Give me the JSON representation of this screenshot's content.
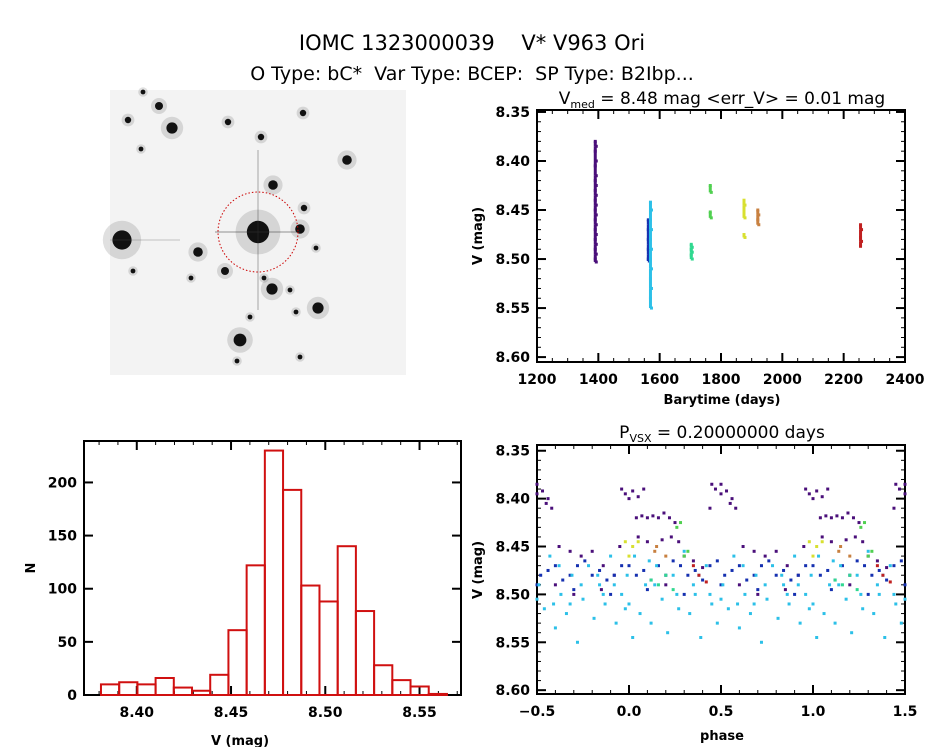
{
  "header": {
    "title": "IOMC 1323000039    V* V963 Ori",
    "subtitle": "O Type: bC*  Var Type: BCEP:  SP Type: B2Ibp..."
  },
  "sky_image": {
    "kind": "grayscale finder chart",
    "aperture_color": "#cc0000"
  },
  "chart_data": [
    {
      "type": "scatter",
      "title_main": "V",
      "title_sub": "med",
      "title_rest": " = 8.48 mag <err_V> = 0.01 mag",
      "xlabel": "Barytime (days)",
      "ylabel": "V (mag)",
      "xlim": [
        1200,
        2400
      ],
      "ylim": [
        8.605,
        8.348
      ],
      "y_inverted": true,
      "xticks": [
        "1200",
        "1400",
        "1600",
        "1800",
        "2000",
        "2200",
        "2400"
      ],
      "yticks": [
        "8.35",
        "8.40",
        "8.45",
        "8.50",
        "8.55",
        "8.60"
      ],
      "series": [
        {
          "color": "#4a0f7a",
          "t": 1390,
          "mags": [
            8.38,
            8.385,
            8.39,
            8.4,
            8.405,
            8.415,
            8.42,
            8.425,
            8.43,
            8.435,
            8.44,
            8.445,
            8.45,
            8.455,
            8.46,
            8.465,
            8.47,
            8.475,
            8.48,
            8.485,
            8.49,
            8.495,
            8.5,
            8.503
          ]
        },
        {
          "color": "#1530b0",
          "t": 1563,
          "mags": [
            8.46,
            8.465,
            8.47,
            8.475,
            8.48,
            8.485,
            8.49,
            8.495,
            8.5,
            8.502
          ]
        },
        {
          "color": "#2cc0e8",
          "t": 1570,
          "mags": [
            8.442,
            8.45,
            8.46,
            8.47,
            8.48,
            8.49,
            8.5,
            8.51,
            8.52,
            8.53,
            8.54,
            8.55
          ]
        },
        {
          "color": "#30d890",
          "t": 1703,
          "mags": [
            8.485,
            8.488,
            8.49,
            8.493,
            8.496,
            8.5
          ]
        },
        {
          "color": "#50d050",
          "t": 1765,
          "mags": [
            8.425,
            8.432,
            8.452,
            8.458
          ]
        },
        {
          "color": "#d8e030",
          "t": 1875,
          "mags": [
            8.44,
            8.445,
            8.45,
            8.458,
            8.475,
            8.478
          ]
        },
        {
          "color": "#c88040",
          "t": 1920,
          "mags": [
            8.45,
            8.455,
            8.46,
            8.465
          ]
        },
        {
          "color": "#c02020",
          "t": 2255,
          "mags": [
            8.465,
            8.47,
            8.478,
            8.482,
            8.487
          ]
        }
      ]
    },
    {
      "type": "bar",
      "xlabel": "V (mag)",
      "ylabel": "N",
      "xlim": [
        8.372,
        8.572
      ],
      "ylim": [
        0,
        239
      ],
      "xticks": [
        "8.40",
        "8.45",
        "8.50",
        "8.55"
      ],
      "yticks": [
        "0",
        "50",
        "100",
        "150",
        "200"
      ],
      "bar_color": "#d01010",
      "bin_start": 8.381,
      "bin_width": 0.00966,
      "values": [
        10,
        12,
        10,
        16,
        7,
        4,
        19,
        61,
        122,
        230,
        193,
        103,
        88,
        140,
        79,
        28,
        14,
        8,
        1
      ]
    },
    {
      "type": "scatter",
      "title_main": "P",
      "title_sub": "VSX",
      "title_rest": " = 0.20000000 days",
      "xlabel": "phase",
      "ylabel": "V (mag)",
      "xlim": [
        -0.5,
        1.5
      ],
      "ylim": [
        8.604,
        8.344
      ],
      "y_inverted": true,
      "xticks": [
        "-0.5",
        "0.0",
        "0.5",
        "1.0",
        "1.5"
      ],
      "yticks": [
        "8.35",
        "8.40",
        "8.45",
        "8.50",
        "8.55",
        "8.60"
      ],
      "series": [
        {
          "color": "#4a0f7a",
          "points": [
            [
              0.96,
              8.39
            ],
            [
              0.98,
              8.395
            ],
            [
              0.0,
              8.4
            ],
            [
              0.02,
              8.392
            ],
            [
              0.05,
              8.398
            ],
            [
              0.08,
              8.39
            ],
            [
              0.45,
              8.385
            ],
            [
              0.47,
              8.39
            ],
            [
              0.5,
              8.395
            ],
            [
              0.53,
              8.392
            ],
            [
              0.56,
              8.4
            ],
            [
              0.58,
              8.41
            ],
            [
              0.55,
              8.405
            ],
            [
              0.04,
              8.42
            ],
            [
              0.07,
              8.418
            ],
            [
              0.1,
              8.42
            ],
            [
              0.13,
              8.418
            ],
            [
              0.16,
              8.42
            ],
            [
              0.19,
              8.415
            ],
            [
              0.22,
              8.42
            ],
            [
              0.25,
              8.425
            ],
            [
              0.05,
              8.44
            ],
            [
              0.1,
              8.445
            ],
            [
              0.18,
              8.443
            ],
            [
              0.23,
              8.44
            ],
            [
              0.27,
              8.445
            ],
            [
              0.3,
              8.46
            ],
            [
              0.35,
              8.465
            ],
            [
              0.62,
              8.45
            ],
            [
              0.68,
              8.455
            ],
            [
              0.74,
              8.46
            ],
            [
              0.8,
              8.455
            ],
            [
              0.86,
              8.47
            ],
            [
              0.92,
              8.48
            ],
            [
              0.7,
              8.5
            ],
            [
              0.2,
              8.49
            ],
            [
              0.4,
              8.472
            ],
            [
              0.6,
              8.49
            ],
            [
              0.85,
              8.495
            ],
            [
              0.95,
              8.45
            ],
            [
              0.44,
              8.41
            ],
            [
              0.5,
              8.385
            ]
          ]
        },
        {
          "color": "#1530b0",
          "points": [
            [
              0.0,
              8.47
            ],
            [
              0.04,
              8.48
            ],
            [
              0.08,
              8.475
            ],
            [
              0.12,
              8.485
            ],
            [
              0.16,
              8.47
            ],
            [
              0.2,
              8.48
            ],
            [
              0.24,
              8.465
            ],
            [
              0.28,
              8.47
            ],
            [
              0.32,
              8.48
            ],
            [
              0.36,
              8.475
            ],
            [
              0.4,
              8.485
            ],
            [
              0.44,
              8.47
            ],
            [
              0.48,
              8.465
            ],
            [
              0.52,
              8.48
            ],
            [
              0.56,
              8.475
            ],
            [
              0.6,
              8.47
            ],
            [
              0.64,
              8.485
            ],
            [
              0.68,
              8.48
            ],
            [
              0.72,
              8.47
            ],
            [
              0.76,
              8.465
            ],
            [
              0.8,
              8.48
            ],
            [
              0.84,
              8.475
            ],
            [
              0.88,
              8.485
            ],
            [
              0.92,
              8.48
            ],
            [
              0.96,
              8.47
            ],
            [
              0.1,
              8.495
            ],
            [
              0.3,
              8.5
            ],
            [
              0.5,
              8.49
            ],
            [
              0.7,
              8.495
            ],
            [
              0.9,
              8.5
            ]
          ]
        },
        {
          "color": "#2cc0e8",
          "points": [
            [
              0.0,
              8.51
            ],
            [
              0.03,
              8.46
            ],
            [
              0.06,
              8.52
            ],
            [
              0.09,
              8.49
            ],
            [
              0.12,
              8.53
            ],
            [
              0.15,
              8.47
            ],
            [
              0.18,
              8.505
            ],
            [
              0.21,
              8.54
            ],
            [
              0.24,
              8.48
            ],
            [
              0.27,
              8.515
            ],
            [
              0.3,
              8.455
            ],
            [
              0.33,
              8.52
            ],
            [
              0.36,
              8.5
            ],
            [
              0.39,
              8.545
            ],
            [
              0.42,
              8.47
            ],
            [
              0.45,
              8.51
            ],
            [
              0.48,
              8.53
            ],
            [
              0.51,
              8.49
            ],
            [
              0.54,
              8.515
            ],
            [
              0.57,
              8.46
            ],
            [
              0.6,
              8.535
            ],
            [
              0.63,
              8.5
            ],
            [
              0.66,
              8.52
            ],
            [
              0.69,
              8.48
            ],
            [
              0.72,
              8.55
            ],
            [
              0.75,
              8.505
            ],
            [
              0.78,
              8.47
            ],
            [
              0.81,
              8.525
            ],
            [
              0.84,
              8.49
            ],
            [
              0.87,
              8.51
            ],
            [
              0.9,
              8.46
            ],
            [
              0.93,
              8.53
            ],
            [
              0.96,
              8.5
            ],
            [
              0.99,
              8.48
            ],
            [
              0.02,
              8.545
            ],
            [
              0.14,
              8.49
            ],
            [
              0.26,
              8.5
            ],
            [
              0.38,
              8.48
            ],
            [
              0.5,
              8.505
            ],
            [
              0.62,
              8.47
            ],
            [
              0.74,
              8.49
            ],
            [
              0.86,
              8.5
            ],
            [
              0.98,
              8.515
            ],
            [
              0.11,
              8.465
            ],
            [
              0.35,
              8.49
            ],
            [
              0.59,
              8.51
            ],
            [
              0.83,
              8.48
            ],
            [
              0.44,
              8.5
            ],
            [
              0.68,
              8.51
            ],
            [
              0.92,
              8.49
            ]
          ]
        },
        {
          "color": "#30d890",
          "points": [
            [
              0.12,
              8.485
            ],
            [
              0.16,
              8.49
            ],
            [
              0.2,
              8.48
            ],
            [
              0.24,
              8.495
            ]
          ]
        },
        {
          "color": "#50d050",
          "points": [
            [
              0.26,
              8.43
            ],
            [
              0.28,
              8.425
            ],
            [
              0.32,
              8.455
            ],
            [
              0.3,
              8.46
            ]
          ]
        },
        {
          "color": "#d8e030",
          "points": [
            [
              0.98,
              8.445
            ],
            [
              0.02,
              8.45
            ],
            [
              0.05,
              8.445
            ],
            [
              0.0,
              8.46
            ]
          ]
        },
        {
          "color": "#c88040",
          "points": [
            [
              0.15,
              8.45
            ],
            [
              0.14,
              8.455
            ],
            [
              0.2,
              8.46
            ]
          ]
        },
        {
          "color": "#c02020",
          "points": [
            [
              0.35,
              8.47
            ],
            [
              0.38,
              8.48
            ],
            [
              0.42,
              8.487
            ]
          ]
        }
      ]
    }
  ]
}
